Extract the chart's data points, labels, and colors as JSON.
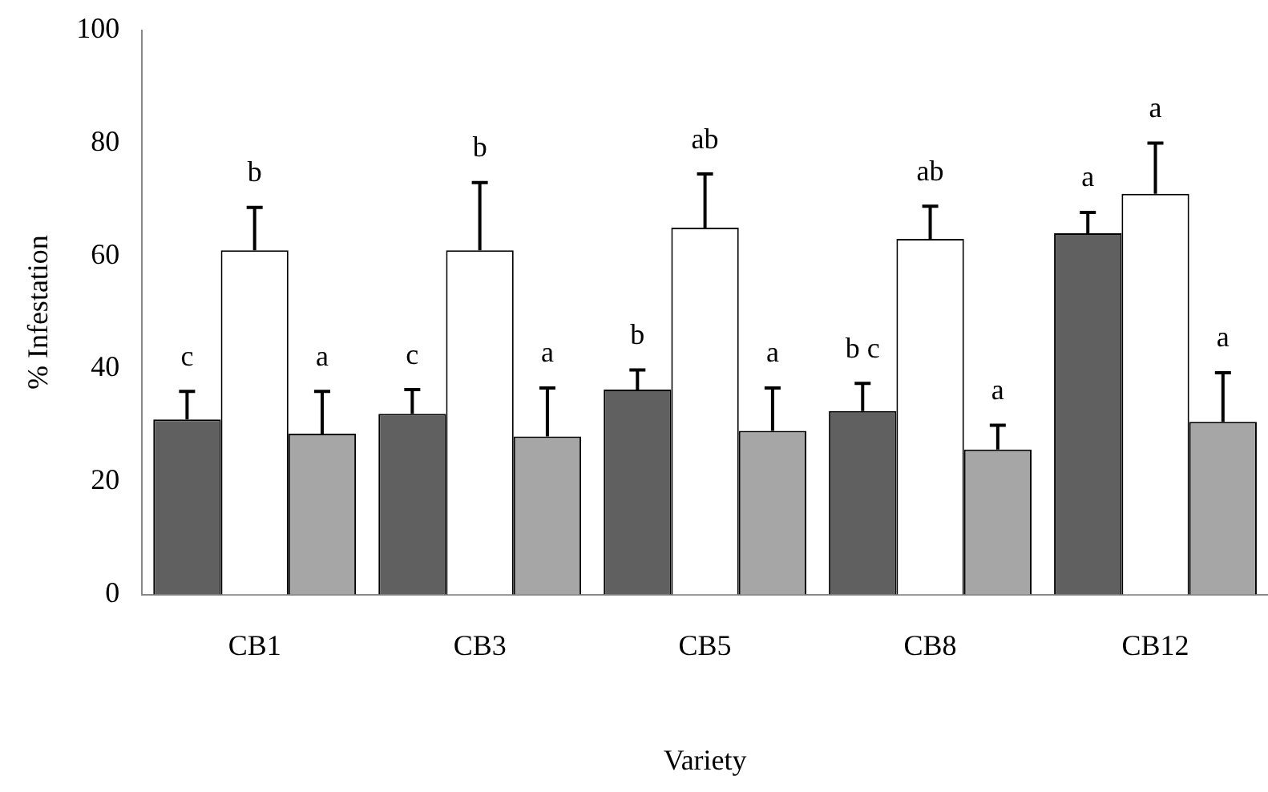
{
  "chart_data": {
    "type": "bar",
    "xlabel": "Variety",
    "ylabel": "% Infestation",
    "categories": [
      "CB1",
      "CB3",
      "CB5",
      "CB8",
      "CB12"
    ],
    "series": [
      {
        "color": "#606060",
        "values": [
          31,
          32,
          36.3,
          32.5,
          64
        ],
        "errors": [
          [
            31,
            36
          ],
          [
            32,
            36.3
          ],
          [
            36.3,
            39.8
          ],
          [
            32.5,
            37.4
          ],
          [
            64,
            67.7
          ]
        ],
        "value_labels": [
          "c",
          "c",
          "b",
          "b c",
          "a"
        ]
      },
      {
        "color": "#ffffff",
        "values": [
          61,
          61,
          65,
          63,
          71
        ],
        "errors": [
          [
            61,
            68.6
          ],
          [
            61,
            73
          ],
          [
            65,
            74.5
          ],
          [
            63,
            68.8
          ],
          [
            71,
            80
          ]
        ],
        "value_labels": [
          "b",
          "b",
          "ab",
          "ab",
          "a"
        ]
      },
      {
        "color": "#a6a6a6",
        "values": [
          28.5,
          28,
          29,
          25.7,
          30.6
        ],
        "errors": [
          [
            28.5,
            36
          ],
          [
            28,
            36.6
          ],
          [
            29,
            36.6
          ],
          [
            25.7,
            30
          ],
          [
            30.6,
            39.3
          ]
        ],
        "value_labels": [
          "a",
          "a",
          "a",
          "a",
          "a"
        ]
      }
    ],
    "ylim": [
      0,
      100
    ],
    "yticks": [
      0,
      20,
      40,
      60,
      80,
      100
    ],
    "grid": false,
    "legend": false
  }
}
